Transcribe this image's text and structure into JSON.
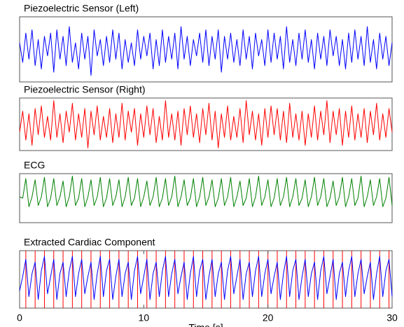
{
  "chart_data": [
    {
      "type": "line",
      "title": "Piezoelectric Sensor (Left)",
      "xlim": [
        0,
        30
      ],
      "ylim": [
        -1,
        1
      ],
      "x": [
        0,
        0.25,
        0.5,
        0.75,
        1,
        1.25,
        1.5,
        1.75,
        2,
        2.25,
        2.5,
        2.75,
        3,
        3.25,
        3.5,
        3.75,
        4,
        4.25,
        4.5,
        4.75,
        5,
        5.25,
        5.5,
        5.75,
        6,
        6.25,
        6.5,
        6.75,
        7,
        7.25,
        7.5,
        7.75,
        8,
        8.25,
        8.5,
        8.75,
        9,
        9.25,
        9.5,
        9.75,
        10,
        10.25,
        10.5,
        10.75,
        11,
        11.25,
        11.5,
        11.75,
        12,
        12.25,
        12.5,
        12.75,
        13,
        13.25,
        13.5,
        13.75,
        14,
        14.25,
        14.5,
        14.75,
        15,
        15.25,
        15.5,
        15.75,
        16,
        16.25,
        16.5,
        16.75,
        17,
        17.25,
        17.5,
        17.75,
        18,
        18.25,
        18.5,
        18.75,
        19,
        19.25,
        19.5,
        19.75,
        20,
        20.25,
        20.5,
        20.75,
        21,
        21.25,
        21.5,
        21.75,
        22,
        22.25,
        22.5,
        22.75,
        23,
        23.25,
        23.5,
        23.75,
        24,
        24.25,
        24.5,
        24.75,
        25,
        25.25,
        25.5,
        25.75,
        26,
        26.25,
        26.5,
        26.75,
        27,
        27.25,
        27.5,
        27.75,
        28,
        28.25,
        28.5,
        28.75,
        29,
        29.25,
        29.5,
        29.75,
        30
      ],
      "color": "#0000ff",
      "values": [
        0.2,
        -0.4,
        0.5,
        -0.3,
        0.6,
        -0.5,
        0.3,
        -0.6,
        0.4,
        -0.2,
        0.5,
        -0.7,
        0.6,
        -0.3,
        0.4,
        -0.5,
        0.7,
        -0.4,
        0.2,
        -0.6,
        0.5,
        -0.3,
        0.4,
        -0.8,
        0.6,
        -0.2,
        0.3,
        -0.5,
        0.4,
        -0.4,
        0.6,
        -0.3,
        0.5,
        -0.6,
        0.3,
        -0.4,
        0.2,
        -0.5,
        0.6,
        -0.3,
        0.4,
        -0.2,
        0.5,
        -0.6,
        0.3,
        -0.5,
        0.6,
        -0.4,
        0.4,
        -0.3,
        0.5,
        -0.6,
        0.7,
        -0.3,
        0.4,
        -0.5,
        0.3,
        -0.2,
        0.5,
        -0.4,
        0.6,
        -0.5,
        0.4,
        -0.3,
        0.6,
        -0.7,
        0.4,
        -0.3,
        0.5,
        -0.4,
        0.3,
        -0.5,
        0.6,
        -0.3,
        0.4,
        -0.6,
        0.5,
        -0.2,
        0.3,
        -0.5,
        0.6,
        -0.4,
        0.5,
        -0.3,
        0.4,
        -0.6,
        0.7,
        -0.4,
        0.3,
        -0.5,
        0.5,
        -0.3,
        0.6,
        -0.4,
        0.3,
        -0.6,
        0.5,
        -0.3,
        0.4,
        -0.5,
        0.6,
        -0.2,
        0.4,
        -0.5,
        0.3,
        -0.6,
        0.5,
        -0.4,
        0.6,
        -0.3,
        0.4,
        -0.5,
        0.7,
        -0.4,
        0.3,
        -0.6,
        0.5,
        -0.3,
        0.4,
        -0.5,
        0.2
      ]
    },
    {
      "type": "line",
      "title": "Piezoelectric Sensor (Right)",
      "xlim": [
        0,
        30
      ],
      "ylim": [
        -1,
        1
      ],
      "x": [
        0,
        0.25,
        0.5,
        0.75,
        1,
        1.25,
        1.5,
        1.75,
        2,
        2.25,
        2.5,
        2.75,
        3,
        3.25,
        3.5,
        3.75,
        4,
        4.25,
        4.5,
        4.75,
        5,
        5.25,
        5.5,
        5.75,
        6,
        6.25,
        6.5,
        6.75,
        7,
        7.25,
        7.5,
        7.75,
        8,
        8.25,
        8.5,
        8.75,
        9,
        9.25,
        9.5,
        9.75,
        10,
        10.25,
        10.5,
        10.75,
        11,
        11.25,
        11.5,
        11.75,
        12,
        12.25,
        12.5,
        12.75,
        13,
        13.25,
        13.5,
        13.75,
        14,
        14.25,
        14.5,
        14.75,
        15,
        15.25,
        15.5,
        15.75,
        16,
        16.25,
        16.5,
        16.75,
        17,
        17.25,
        17.5,
        17.75,
        18,
        18.25,
        18.5,
        18.75,
        19,
        19.25,
        19.5,
        19.75,
        20,
        20.25,
        20.5,
        20.75,
        21,
        21.25,
        21.5,
        21.75,
        22,
        22.25,
        22.5,
        22.75,
        23,
        23.25,
        23.5,
        23.75,
        24,
        24.25,
        24.5,
        24.75,
        25,
        25.25,
        25.5,
        25.75,
        26,
        26.25,
        26.5,
        26.75,
        27,
        27.25,
        27.5,
        27.75,
        28,
        28.25,
        28.5,
        28.75,
        29,
        29.25,
        29.5,
        29.75,
        30
      ],
      "color": "#ff0000",
      "values": [
        -0.3,
        0.5,
        -0.6,
        0.4,
        -0.8,
        0.6,
        -0.4,
        0.7,
        -0.5,
        0.3,
        -0.6,
        0.9,
        -0.5,
        0.4,
        -0.7,
        0.5,
        -0.3,
        0.8,
        -0.6,
        0.4,
        -0.5,
        0.6,
        -0.9,
        0.5,
        -0.4,
        0.7,
        -0.6,
        0.3,
        -0.5,
        0.6,
        -0.7,
        0.4,
        -0.5,
        0.8,
        -0.6,
        0.5,
        -0.3,
        0.6,
        -0.8,
        0.4,
        -0.5,
        0.7,
        -0.4,
        0.6,
        -0.7,
        0.3,
        -0.6,
        0.9,
        -0.5,
        0.4,
        -0.6,
        0.5,
        -0.8,
        0.6,
        -0.4,
        0.7,
        -0.5,
        0.4,
        -0.7,
        0.6,
        -0.4,
        0.8,
        -0.6,
        0.5,
        -0.9,
        0.4,
        -0.5,
        0.7,
        -0.6,
        0.3,
        -0.5,
        0.6,
        -0.7,
        0.9,
        -0.4,
        0.5,
        -0.6,
        0.4,
        -0.8,
        0.6,
        -0.5,
        0.7,
        -0.4,
        0.6,
        -0.6,
        0.5,
        -0.7,
        0.8,
        -0.5,
        0.4,
        -0.6,
        0.5,
        -0.8,
        0.4,
        -0.5,
        0.7,
        -0.6,
        0.5,
        -0.4,
        0.9,
        -0.7,
        0.5,
        -0.4,
        0.6,
        -0.8,
        0.5,
        -0.5,
        0.7,
        -0.6,
        0.4,
        -0.5,
        0.6,
        -0.7,
        0.5,
        -0.4,
        0.8,
        -0.6,
        0.4,
        -0.5,
        0.6,
        -0.3
      ]
    },
    {
      "type": "line",
      "title": "ECG",
      "xlim": [
        0,
        30
      ],
      "ylim": [
        -1,
        1
      ],
      "x": [
        0,
        0.25,
        0.5,
        0.75,
        1,
        1.25,
        1.5,
        1.75,
        2,
        2.25,
        2.5,
        2.75,
        3,
        3.25,
        3.5,
        3.75,
        4,
        4.25,
        4.5,
        4.75,
        5,
        5.25,
        5.5,
        5.75,
        6,
        6.25,
        6.5,
        6.75,
        7,
        7.25,
        7.5,
        7.75,
        8,
        8.25,
        8.5,
        8.75,
        9,
        9.25,
        9.5,
        9.75,
        10,
        10.25,
        10.5,
        10.75,
        11,
        11.25,
        11.5,
        11.75,
        12,
        12.25,
        12.5,
        12.75,
        13,
        13.25,
        13.5,
        13.75,
        14,
        14.25,
        14.5,
        14.75,
        15,
        15.25,
        15.5,
        15.75,
        16,
        16.25,
        16.5,
        16.75,
        17,
        17.25,
        17.5,
        17.75,
        18,
        18.25,
        18.5,
        18.75,
        19,
        19.25,
        19.5,
        19.75,
        20,
        20.25,
        20.5,
        20.75,
        21,
        21.25,
        21.5,
        21.75,
        22,
        22.25,
        22.5,
        22.75,
        23,
        23.25,
        23.5,
        23.75,
        24,
        24.25,
        24.5,
        24.75,
        25,
        25.25,
        25.5,
        25.75,
        26,
        26.25,
        26.5,
        26.75,
        27,
        27.25,
        27.5,
        27.75,
        28,
        28.25,
        28.5,
        28.75,
        29,
        29.25,
        29.5,
        29.75,
        30
      ],
      "color": "#008000",
      "values": [
        0.05,
        0,
        0.8,
        -0.35,
        0.05,
        0.75,
        -0.3,
        0.05,
        0.85,
        -0.35,
        0,
        0.8,
        -0.3,
        0.05,
        0.7,
        -0.35,
        0.05,
        0.9,
        -0.3,
        0,
        0.8,
        -0.35,
        0.05,
        0.75,
        -0.3,
        0.05,
        0.85,
        -0.35,
        0,
        0.8,
        -0.3,
        0.05,
        0.75,
        -0.35,
        0.05,
        0.85,
        -0.3,
        0,
        0.8,
        -0.35,
        0.05,
        0.7,
        -0.3,
        0.05,
        0.85,
        -0.35,
        0,
        0.8,
        -0.3,
        0.05,
        0.9,
        -0.35,
        0.05,
        0.75,
        -0.3,
        0,
        0.8,
        -0.35,
        0.05,
        0.85,
        -0.3,
        0.05,
        0.75,
        -0.35,
        0,
        0.8,
        -0.3,
        0.05,
        0.85,
        -0.35,
        0.05,
        0.7,
        -0.3,
        0,
        0.8,
        -0.35,
        0.05,
        0.9,
        -0.3,
        0.05,
        0.75,
        -0.35,
        0,
        0.8,
        -0.3,
        0.05,
        0.85,
        -0.35,
        0.05,
        0.8,
        -0.3,
        0,
        0.75,
        -0.35,
        0.05,
        0.85,
        -0.3,
        0.05,
        0.8,
        -0.35,
        0,
        0.7,
        -0.3,
        0.05,
        0.85,
        -0.35,
        0.05,
        0.8,
        -0.3,
        0,
        0.9,
        -0.35,
        0.05,
        0.75,
        -0.3,
        0.05,
        0.8,
        -0.35,
        0,
        0.85,
        -0.3
      ]
    },
    {
      "type": "line",
      "title": "Extracted Cardiac Component",
      "xlim": [
        0,
        30
      ],
      "ylim": [
        -1,
        1
      ],
      "xticks": [
        0,
        10,
        20,
        30
      ],
      "xlabel": "Time [s]",
      "x": [
        0,
        0.25,
        0.5,
        0.75,
        1,
        1.25,
        1.5,
        1.75,
        2,
        2.25,
        2.5,
        2.75,
        3,
        3.25,
        3.5,
        3.75,
        4,
        4.25,
        4.5,
        4.75,
        5,
        5.25,
        5.5,
        5.75,
        6,
        6.25,
        6.5,
        6.75,
        7,
        7.25,
        7.5,
        7.75,
        8,
        8.25,
        8.5,
        8.75,
        9,
        9.25,
        9.5,
        9.75,
        10,
        10.25,
        10.5,
        10.75,
        11,
        11.25,
        11.5,
        11.75,
        12,
        12.25,
        12.5,
        12.75,
        13,
        13.25,
        13.5,
        13.75,
        14,
        14.25,
        14.5,
        14.75,
        15,
        15.25,
        15.5,
        15.75,
        16,
        16.25,
        16.5,
        16.75,
        17,
        17.25,
        17.5,
        17.75,
        18,
        18.25,
        18.5,
        18.75,
        19,
        19.25,
        19.5,
        19.75,
        20,
        20.25,
        20.5,
        20.75,
        21,
        21.25,
        21.5,
        21.75,
        22,
        22.25,
        22.5,
        22.75,
        23,
        23.25,
        23.5,
        23.75,
        24,
        24.25,
        24.5,
        24.75,
        25,
        25.25,
        25.5,
        25.75,
        26,
        26.25,
        26.5,
        26.75,
        27,
        27.25,
        27.5,
        27.75,
        28,
        28.25,
        28.5,
        28.75,
        29,
        29.25,
        29.5,
        29.75,
        30
      ],
      "color": "#0000ff",
      "values": [
        -0.4,
        0.1,
        0.7,
        -0.6,
        0.2,
        0.6,
        -0.7,
        0.3,
        0.8,
        -0.5,
        0.1,
        0.7,
        -0.7,
        0.2,
        0.6,
        -0.6,
        0.3,
        0.8,
        -0.6,
        0.2,
        0.7,
        -0.5,
        0.1,
        0.6,
        -0.7,
        0.2,
        0.8,
        -0.6,
        0.3,
        0.7,
        -0.7,
        0.1,
        0.7,
        -0.6,
        0.2,
        0.6,
        -0.7,
        0.3,
        0.8,
        -0.5,
        0.1,
        0.7,
        -0.7,
        0.2,
        0.6,
        -0.6,
        0.3,
        0.8,
        -0.6,
        0.2,
        0.7,
        -0.5,
        0.1,
        0.6,
        -0.7,
        0.2,
        0.8,
        -0.6,
        0.3,
        0.7,
        -0.7,
        0.1,
        0.7,
        -0.6,
        0.2,
        0.6,
        -0.7,
        0.3,
        0.8,
        -0.5,
        0.1,
        0.7,
        -0.7,
        0.2,
        0.6,
        -0.6,
        0.3,
        0.8,
        -0.6,
        0.2,
        0.7,
        -0.5,
        0.1,
        0.6,
        -0.7,
        0.2,
        0.8,
        -0.6,
        0.3,
        0.7,
        -0.7,
        0.1,
        0.7,
        -0.6,
        0.2,
        0.6,
        -0.7,
        0.3,
        0.8,
        -0.5,
        0.1,
        0.7,
        -0.7,
        0.2,
        0.6,
        -0.6,
        0.3,
        0.8,
        -0.6,
        0.2,
        0.7,
        -0.5,
        0.1,
        0.6,
        -0.7,
        0.2,
        0.8,
        -0.6,
        0.3,
        0.7,
        -0.6
      ],
      "marker_color": "#ff0000",
      "markers_x": [
        0.5,
        1.25,
        2,
        2.75,
        3.5,
        4.25,
        5,
        5.75,
        6.5,
        7.25,
        8,
        8.75,
        9.5,
        10.25,
        11,
        11.75,
        12.5,
        13.25,
        14,
        14.75,
        15.5,
        16.25,
        17,
        17.75,
        18.5,
        19.25,
        20,
        20.75,
        21.5,
        22.25,
        23,
        23.75,
        24.5,
        25.25,
        26,
        26.75,
        27.5,
        28.25,
        29,
        29.75
      ]
    }
  ]
}
